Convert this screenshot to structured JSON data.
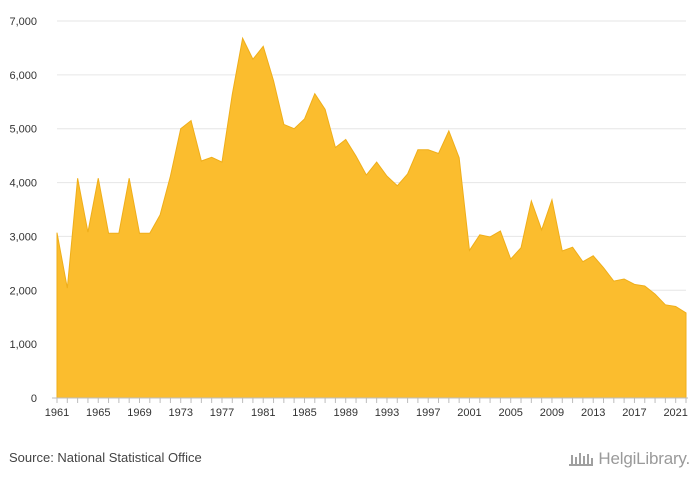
{
  "chart_data": {
    "type": "area",
    "x": [
      1961,
      1962,
      1963,
      1964,
      1965,
      1966,
      1967,
      1968,
      1969,
      1970,
      1971,
      1972,
      1973,
      1974,
      1975,
      1976,
      1977,
      1978,
      1979,
      1980,
      1981,
      1982,
      1983,
      1984,
      1985,
      1986,
      1987,
      1988,
      1989,
      1990,
      1991,
      1992,
      1993,
      1994,
      1995,
      1996,
      1997,
      1998,
      1999,
      2000,
      2001,
      2002,
      2003,
      2004,
      2005,
      2006,
      2007,
      2008,
      2009,
      2010,
      2011,
      2012,
      2013,
      2014,
      2015,
      2016,
      2017,
      2018,
      2019,
      2020,
      2021,
      2022
    ],
    "values": [
      3070,
      2040,
      4080,
      3080,
      4080,
      3060,
      3060,
      4080,
      3060,
      3060,
      3400,
      4120,
      5000,
      5150,
      4400,
      4470,
      4380,
      5640,
      6680,
      6290,
      6530,
      5890,
      5080,
      5000,
      5180,
      5650,
      5360,
      4650,
      4800,
      4490,
      4140,
      4380,
      4120,
      3940,
      4160,
      4610,
      4610,
      4540,
      4960,
      4460,
      2740,
      3030,
      2990,
      3100,
      2580,
      2790,
      3660,
      3120,
      3680,
      2730,
      2800,
      2530,
      2640,
      2420,
      2170,
      2210,
      2110,
      2080,
      1930,
      1730,
      1700,
      1580
    ],
    "xticks": [
      "1961",
      "1965",
      "1969",
      "1973",
      "1977",
      "1981",
      "1985",
      "1989",
      "1993",
      "1997",
      "2001",
      "2005",
      "2009",
      "2013",
      "2017",
      "2021"
    ],
    "yticks": [
      "0",
      "1,000",
      "2,000",
      "3,000",
      "4,000",
      "5,000",
      "6,000",
      "7,000"
    ],
    "ylim": [
      0,
      7000
    ],
    "xlim": [
      1961,
      2022
    ],
    "title": "",
    "xlabel": "",
    "ylabel": "",
    "grid": "horizontal",
    "fill_color": "#FBBD2E",
    "stroke_color": "#EFAE1A"
  },
  "footer": {
    "source": "Source: National Statistical Office",
    "brand": "HelgiLibrary."
  }
}
